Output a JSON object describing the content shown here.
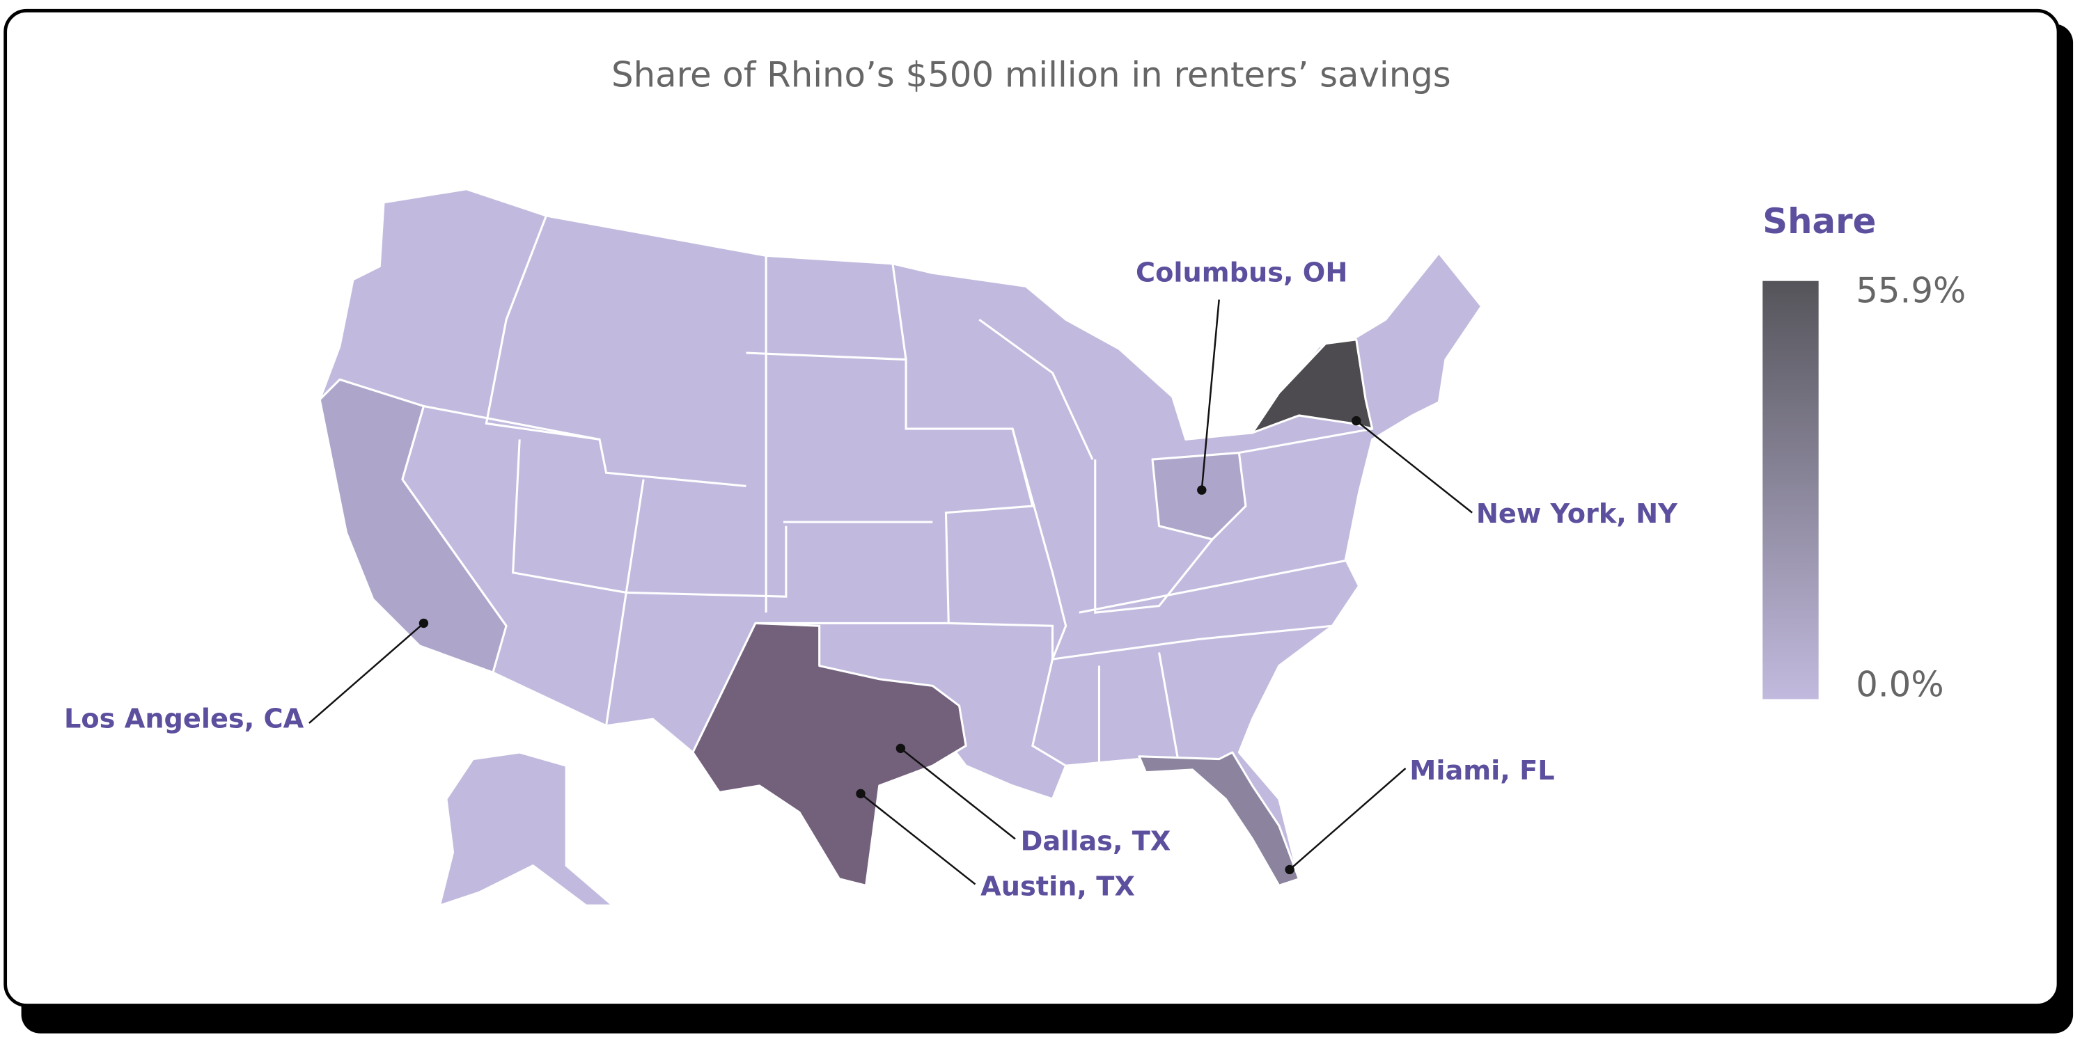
{
  "title": "Share of Rhino’s $500 million in renters’ savings",
  "legend": {
    "title": "Share",
    "ticks": [
      {
        "value": 55.9,
        "label": "55.9%"
      },
      {
        "value": 0.0,
        "label": "0.0%"
      }
    ],
    "colors": [
      "#55545a",
      "#c2bade"
    ]
  },
  "callouts": [
    {
      "label": "Columbus, OH"
    },
    {
      "label": "New York, NY"
    },
    {
      "label": "Los Angeles, CA"
    },
    {
      "label": "Miami, FL"
    },
    {
      "label": "Dallas, TX"
    },
    {
      "label": "Austin, TX"
    }
  ]
}
